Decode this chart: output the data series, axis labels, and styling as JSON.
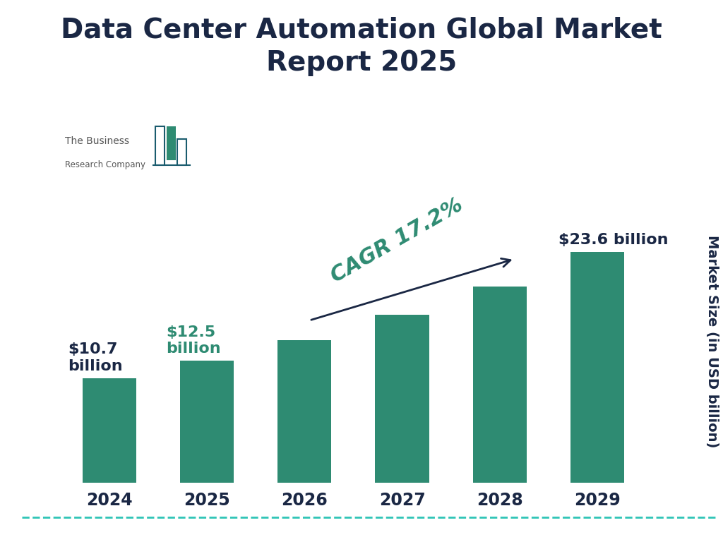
{
  "title": "Data Center Automation Global Market\nReport 2025",
  "years": [
    "2024",
    "2025",
    "2026",
    "2027",
    "2028",
    "2029"
  ],
  "values": [
    10.7,
    12.5,
    14.6,
    17.2,
    20.1,
    23.6
  ],
  "bar_color": "#2E8B72",
  "label_2024": "$10.7\nbillion",
  "label_2025": "$12.5\nbillion",
  "label_2029": "$23.6 billion",
  "cagr_text": "CAGR 17.2%",
  "ylabel": "Market Size (in USD billion)",
  "title_color": "#1a2744",
  "label_color_outer": "#1a2744",
  "label_color_green": "#2E8B72",
  "background_color": "#ffffff",
  "dashed_line_color": "#2EC4B6",
  "logo_text_color": "#555555",
  "logo_outline_color": "#1a5c6e",
  "title_fontsize": 28,
  "tick_fontsize": 17,
  "ylabel_fontsize": 14,
  "annotation_fontsize": 16,
  "cagr_fontsize": 22,
  "ylim": [
    0,
    30
  ],
  "bar_width": 0.55
}
